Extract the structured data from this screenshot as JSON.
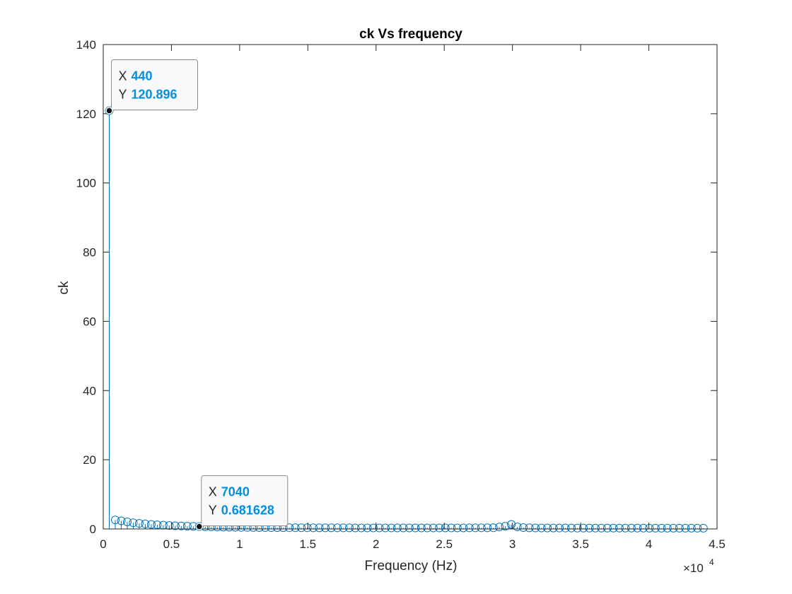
{
  "chart_data": {
    "type": "stem",
    "title": "ck Vs frequency",
    "xlabel": "Frequency (Hz)",
    "ylabel": "ck",
    "xlim": [
      0,
      45000
    ],
    "ylim": [
      0,
      140
    ],
    "xtick_values": [
      0,
      5000,
      10000,
      15000,
      20000,
      25000,
      30000,
      35000,
      40000,
      45000
    ],
    "xtick_labels": [
      "0",
      "0.5",
      "1",
      "1.5",
      "2",
      "2.5",
      "3",
      "3.5",
      "4",
      "4.5"
    ],
    "x_exponent_label": "×10",
    "x_exponent_power": "4",
    "ytick_values": [
      0,
      20,
      40,
      60,
      80,
      100,
      120,
      140
    ],
    "ytick_labels": [
      "0",
      "20",
      "40",
      "60",
      "80",
      "100",
      "120",
      "140"
    ],
    "grid": false,
    "box": true,
    "series": [
      {
        "color": "#0072BD",
        "marker": "open-circle",
        "x": [
          440,
          880,
          1320,
          1760,
          2200,
          2640,
          3080,
          3520,
          3960,
          4400,
          4840,
          5280,
          5720,
          6160,
          6600,
          7040,
          7480,
          7920,
          8360,
          8800,
          9240,
          9680,
          10120,
          10560,
          11000,
          11440,
          11880,
          12320,
          12760,
          13200,
          13640,
          14080,
          14520,
          14960,
          15400,
          15840,
          16280,
          16720,
          17160,
          17600,
          18040,
          18480,
          18920,
          19360,
          19800,
          20240,
          20680,
          21120,
          21560,
          22000,
          22440,
          22880,
          23320,
          23760,
          24200,
          24640,
          25080,
          25520,
          25960,
          26400,
          26840,
          27280,
          27720,
          28160,
          28600,
          29040,
          29480,
          29920,
          30360,
          30800,
          31240,
          31680,
          32120,
          32560,
          33000,
          33440,
          33880,
          34320,
          34760,
          35200,
          35640,
          36080,
          36520,
          36960,
          37400,
          37840,
          38280,
          38720,
          39160,
          39600,
          40040,
          40480,
          40920,
          41360,
          41800,
          42240,
          42680,
          43120,
          43560,
          44000
        ],
        "y": [
          120.896,
          2.6,
          2.35,
          2.05,
          1.8,
          1.6,
          1.45,
          1.3,
          1.2,
          1.1,
          1.0,
          0.92,
          0.86,
          0.8,
          0.75,
          0.681628,
          0.64,
          0.6,
          0.57,
          0.54,
          0.51,
          0.49,
          0.47,
          0.45,
          0.43,
          0.42,
          0.41,
          0.4,
          0.39,
          0.38,
          0.37,
          0.36,
          0.35,
          0.35,
          0.34,
          0.34,
          0.33,
          0.33,
          0.32,
          0.32,
          0.32,
          0.31,
          0.31,
          0.31,
          0.31,
          0.3,
          0.3,
          0.3,
          0.3,
          0.3,
          0.3,
          0.3,
          0.3,
          0.3,
          0.3,
          0.3,
          0.31,
          0.31,
          0.31,
          0.31,
          0.32,
          0.32,
          0.32,
          0.33,
          0.35,
          0.55,
          0.8,
          1.3,
          0.6,
          0.4,
          0.33,
          0.3,
          0.29,
          0.28,
          0.28,
          0.27,
          0.27,
          0.27,
          0.26,
          0.26,
          0.26,
          0.26,
          0.26,
          0.25,
          0.25,
          0.25,
          0.25,
          0.25,
          0.25,
          0.25,
          0.24,
          0.24,
          0.24,
          0.24,
          0.24,
          0.24,
          0.24,
          0.24,
          0.24,
          0.24
        ]
      }
    ],
    "datatips": [
      {
        "x_label": "X",
        "x_value": "440",
        "y_label": "Y",
        "y_value": "120.896",
        "x": 440,
        "y": 120.896,
        "value_color": "#0090E0",
        "placement": "top-right"
      },
      {
        "x_label": "X",
        "x_value": "7040",
        "y_label": "Y",
        "y_value": "0.681628",
        "x": 7040,
        "y": 0.681628,
        "value_color": "#0090E0",
        "placement": "top-right"
      }
    ]
  }
}
